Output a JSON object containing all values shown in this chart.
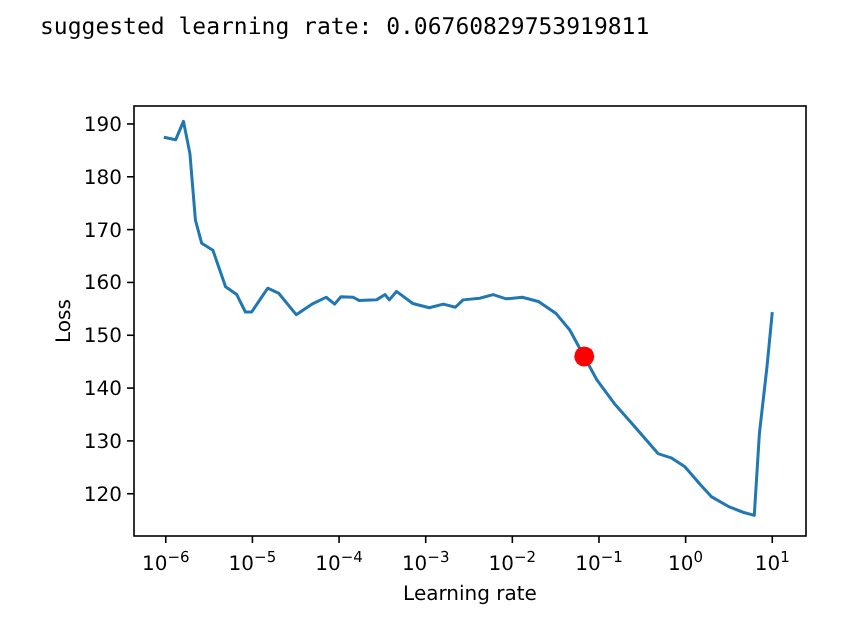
{
  "chart_data": {
    "type": "line",
    "xlabel": "Learning rate",
    "ylabel": "Loss",
    "log": "x",
    "annotations": [
      "suggested learning rate: 0.06760829753919811"
    ],
    "xlim": [
      4.3e-07,
      24.5
    ],
    "ylim": [
      112,
      193.4
    ],
    "xticks": [
      {
        "value": 1e-06,
        "label": "10$^{−6}$"
      },
      {
        "value": 1e-05,
        "label": "10$^{−5}$"
      },
      {
        "value": 0.0001,
        "label": "10$^{−4}$"
      },
      {
        "value": 0.001,
        "label": "10$^{−3}$"
      },
      {
        "value": 0.01,
        "label": "10$^{−2}$"
      },
      {
        "value": 0.1,
        "label": "10$^{−1}$"
      },
      {
        "value": 1,
        "label": "10$^{0}$"
      },
      {
        "value": 10,
        "label": "10$^{1}$"
      }
    ],
    "yticks": [
      120,
      130,
      140,
      150,
      160,
      170,
      180,
      190
    ],
    "series": [
      {
        "color": "#1f77b4",
        "x": [
          9.5e-07,
          1.3e-06,
          1.6e-06,
          1.9e-06,
          2.2e-06,
          2.6e-06,
          3.5e-06,
          4.9e-06,
          6.6e-06,
          8.3e-06,
          9.8e-06,
          1.5e-05,
          2e-05,
          3.2e-05,
          5e-05,
          7.1e-05,
          8.9e-05,
          0.000105,
          0.000145,
          0.00017,
          0.00027,
          0.00034,
          0.00038,
          0.00046,
          0.00071,
          0.0011,
          0.0016,
          0.0022,
          0.0027,
          0.0042,
          0.006,
          0.0085,
          0.013,
          0.02,
          0.032,
          0.046,
          0.095,
          0.15,
          0.24,
          0.48,
          0.68,
          0.98,
          1.5,
          2.0,
          3.2,
          4.6,
          6.2,
          7.1,
          8.7,
          10
        ],
        "values": [
          187.5,
          187,
          190.5,
          184.4,
          171.8,
          167.4,
          166.1,
          159.2,
          157.7,
          154.4,
          154.4,
          158.9,
          158,
          153.9,
          156,
          157.2,
          155.9,
          157.3,
          157.2,
          156.6,
          156.7,
          157.7,
          156.7,
          158.3,
          156,
          155.2,
          155.9,
          155.3,
          156.7,
          157,
          157.7,
          156.9,
          157.2,
          156.4,
          154.1,
          151,
          141.5,
          137.1,
          133.3,
          127.6,
          126.8,
          125.1,
          121.6,
          119.4,
          117.5,
          116.5,
          115.9,
          131.4,
          144.1,
          154.4
        ]
      },
      {
        "type": "scatter",
        "color": "#ff0000",
        "marker": "circle",
        "x": [
          0.0676
        ],
        "values": [
          146
        ]
      }
    ]
  }
}
